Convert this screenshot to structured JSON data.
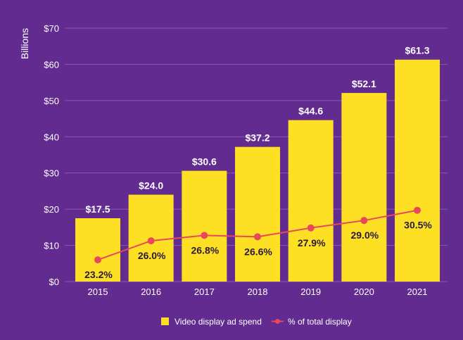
{
  "chart_data": {
    "type": "bar",
    "categories": [
      "2015",
      "2016",
      "2017",
      "2018",
      "2019",
      "2020",
      "2021"
    ],
    "ylabel": "Billions",
    "ylim": [
      0,
      70
    ],
    "yticks": [
      "$0",
      "$10",
      "$20",
      "$30",
      "$40",
      "$50",
      "$60",
      "$70"
    ],
    "grid": true,
    "legend_position": "bottom",
    "colors": {
      "background": "#622b8f",
      "bar": "#fde023",
      "line": "#e8485b",
      "grid": "#8a5ab0"
    },
    "series": [
      {
        "name": "Video display ad spend",
        "type": "bar",
        "values": [
          17.5,
          24.0,
          30.6,
          37.2,
          44.6,
          52.1,
          61.3
        ],
        "labels": [
          "$17.5",
          "$24.0",
          "$30.6",
          "$37.2",
          "$44.6",
          "$52.1",
          "$61.3"
        ]
      },
      {
        "name": "% of total display",
        "type": "line",
        "values": [
          23.2,
          26.0,
          26.8,
          26.6,
          27.9,
          29.0,
          30.5
        ],
        "labels": [
          "23.2%",
          "26.0%",
          "26.8%",
          "26.6%",
          "27.9%",
          "29.0%",
          "30.5%"
        ]
      }
    ]
  }
}
